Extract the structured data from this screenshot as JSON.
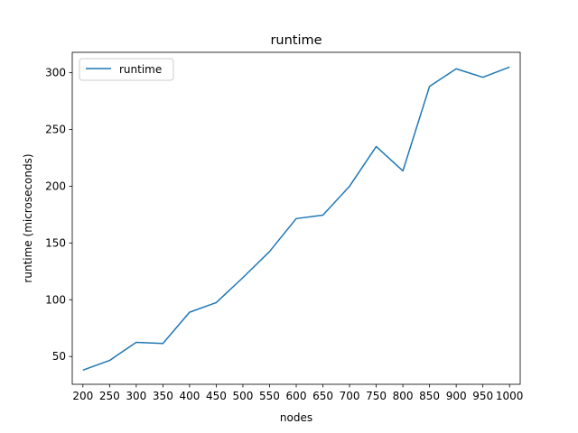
{
  "chart_data": {
    "type": "line",
    "title": "runtime",
    "xlabel": "nodes",
    "ylabel": "runtime (microseconds)",
    "categories": [
      "200",
      "250",
      "300",
      "350",
      "400",
      "450",
      "500",
      "550",
      "600",
      "650",
      "700",
      "750",
      "800",
      "850",
      "900",
      "950",
      "1000"
    ],
    "series": [
      {
        "name": "runtime",
        "color": "#1f77b4",
        "values": [
          38,
          46.5,
          62.5,
          61.5,
          89,
          97.5,
          119.5,
          142.5,
          171.5,
          174.5,
          200,
          235,
          213.5,
          288,
          303.5,
          296,
          305
        ]
      }
    ],
    "yticks": [
      50,
      100,
      150,
      200,
      250,
      300
    ],
    "ylim": [
      25.5,
      318
    ],
    "legend": {
      "placement": "top-left"
    },
    "grid": false
  }
}
